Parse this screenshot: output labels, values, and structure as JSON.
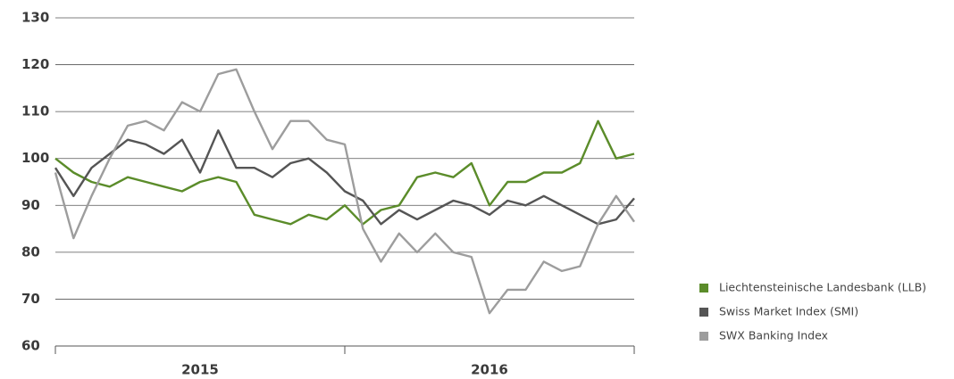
{
  "chart_data": {
    "type": "line",
    "year_bands": [
      "2015",
      "2016"
    ],
    "ylim": [
      60,
      130
    ],
    "yticks": [
      60,
      70,
      80,
      90,
      100,
      110,
      120,
      130
    ],
    "grid": true,
    "legend": "right",
    "series": [
      {
        "name": "Liechtensteinische Landesbank (LLB)",
        "color": "#5b8c2a",
        "values": [
          100,
          97,
          95,
          94,
          96,
          95,
          94,
          93,
          95,
          96,
          95,
          88,
          87,
          86,
          88,
          87,
          90,
          86,
          89,
          90,
          96,
          97,
          96,
          99,
          90,
          95,
          95,
          97,
          97,
          99,
          108,
          100,
          101
        ]
      },
      {
        "name": "Swiss Market Index (SMI)",
        "color": "#555555",
        "values": [
          98,
          92,
          98,
          101,
          104,
          103,
          101,
          104,
          97,
          106,
          98,
          98,
          96,
          99,
          100,
          97,
          93,
          91,
          86,
          89,
          87,
          89,
          91,
          90,
          88,
          91,
          90,
          92,
          90,
          88,
          86,
          87,
          91.5
        ]
      },
      {
        "name": "SWX Banking Index",
        "color": "#9d9d9d",
        "values": [
          97,
          83,
          92,
          100,
          107,
          108,
          106,
          112,
          110,
          118,
          119,
          110,
          102,
          108,
          108,
          104,
          103,
          85,
          78,
          84,
          80,
          84,
          80,
          79,
          67,
          72,
          72,
          78,
          76,
          77,
          86,
          92,
          86.5
        ]
      }
    ]
  }
}
